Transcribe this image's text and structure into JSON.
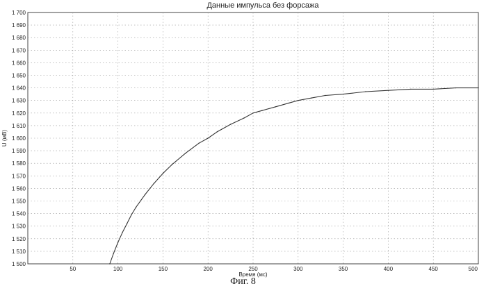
{
  "caption": "Фиг. 8",
  "chart_data": {
    "type": "line",
    "title": "Данные импульса без форсажа",
    "xlabel": "Время (мс)",
    "ylabel": "U (мВ)",
    "xlim": [
      0,
      500
    ],
    "ylim": [
      1500,
      1700
    ],
    "x_ticks": [
      "50",
      "100",
      "150",
      "200",
      "250",
      "300",
      "350",
      "400",
      "450",
      "500"
    ],
    "y_ticks": [
      "1 500",
      "1 510",
      "1 520",
      "1 530",
      "1 540",
      "1 550",
      "1 560",
      "1 570",
      "1 580",
      "1 590",
      "1 600",
      "1 610",
      "1 620",
      "1 630",
      "1 640",
      "1 650",
      "1 660",
      "1 670",
      "1 680",
      "1 690",
      "1 700"
    ],
    "grid": true,
    "series": [
      {
        "x": [
          91,
          95,
          100,
          105,
          110,
          115,
          120,
          130,
          140,
          150,
          160,
          175,
          190,
          200,
          210,
          225,
          240,
          250,
          260,
          275,
          290,
          300,
          315,
          330,
          350,
          375,
          400,
          425,
          450,
          475,
          500
        ],
        "y": [
          1500,
          1508,
          1517,
          1525,
          1532,
          1539,
          1545,
          1555,
          1564,
          1572,
          1579,
          1588,
          1596,
          1600,
          1605,
          1611,
          1616,
          1620,
          1622,
          1625,
          1628,
          1630,
          1632,
          1634,
          1635,
          1637,
          1638,
          1639,
          1639,
          1640,
          1640
        ]
      }
    ]
  }
}
